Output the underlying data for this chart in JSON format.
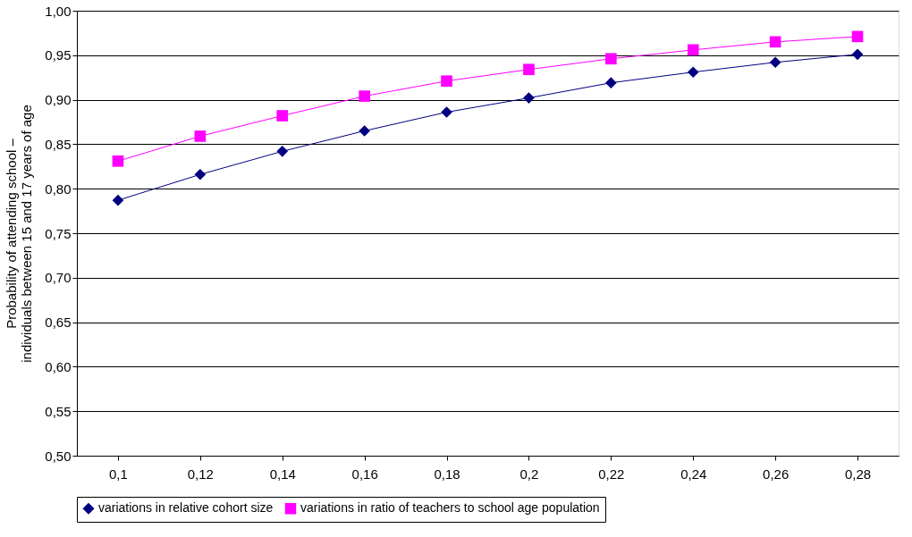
{
  "chart_data": {
    "type": "line",
    "ylabel": "Probability of attending school – individuals between 15 and 17 years of age",
    "categories": [
      "0,1",
      "0,12",
      "0,14",
      "0,16",
      "0,18",
      "0,2",
      "0,22",
      "0,24",
      "0,26",
      "0,28"
    ],
    "series": [
      {
        "name": "variations in relative cohort size",
        "color": "#000080",
        "marker": "diamond",
        "values": [
          0.787,
          0.816,
          0.842,
          0.865,
          0.886,
          0.902,
          0.919,
          0.931,
          0.942,
          0.951
        ]
      },
      {
        "name": "variations in ratio of teachers to school age population",
        "color": "#ff00ff",
        "marker": "square",
        "values": [
          0.831,
          0.859,
          0.882,
          0.904,
          0.921,
          0.934,
          0.946,
          0.956,
          0.965,
          0.971
        ]
      }
    ],
    "ylim": [
      0.5,
      1.0
    ],
    "yticks": [
      {
        "value": 0.5,
        "label": "0,50"
      },
      {
        "value": 0.55,
        "label": "0,55"
      },
      {
        "value": 0.6,
        "label": "0,60"
      },
      {
        "value": 0.65,
        "label": "0,65"
      },
      {
        "value": 0.7,
        "label": "0,70"
      },
      {
        "value": 0.75,
        "label": "0,75"
      },
      {
        "value": 0.8,
        "label": "0,80"
      },
      {
        "value": 0.85,
        "label": "0,85"
      },
      {
        "value": 0.9,
        "label": "0,90"
      },
      {
        "value": 0.95,
        "label": "0,95"
      },
      {
        "value": 1.0,
        "label": "1,00"
      }
    ],
    "grid": "y",
    "legend": "bottom",
    "line_style": "solid"
  }
}
